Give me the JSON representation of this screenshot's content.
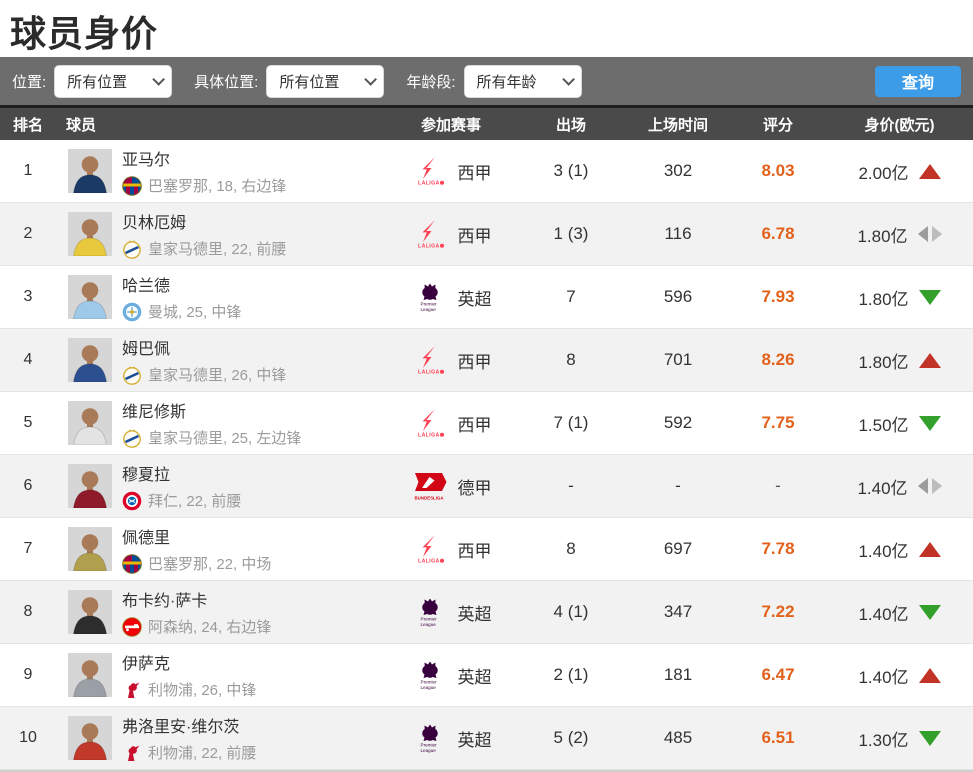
{
  "page": {
    "title": "球员身价"
  },
  "filters": {
    "items": [
      {
        "label": "位置:",
        "value": "所有位置"
      },
      {
        "label": "具体位置:",
        "value": "所有位置"
      },
      {
        "label": "年龄段:",
        "value": "所有年龄"
      }
    ],
    "search_label": "查询"
  },
  "table": {
    "headers": [
      "排名",
      "球员",
      "参加赛事",
      "出场",
      "上场时间",
      "评分",
      "身价(欧元)"
    ],
    "rows": [
      {
        "rank": "1",
        "name": "亚马尔",
        "club_info": "巴塞罗那, 18, 右边锋",
        "club": "barcelona",
        "league": "西甲",
        "league_key": "laliga",
        "apps": "3 (1)",
        "minutes": "302",
        "rating": "8.03",
        "value": "2.00亿",
        "trend": "up",
        "avatar_hint": "#1c3a66"
      },
      {
        "rank": "2",
        "name": "贝林厄姆",
        "club_info": "皇家马德里, 22, 前腰",
        "club": "realmadrid",
        "league": "西甲",
        "league_key": "laliga",
        "apps": "1 (3)",
        "minutes": "116",
        "rating": "6.78",
        "value": "1.80亿",
        "trend": "flat",
        "avatar_hint": "#e8c93d"
      },
      {
        "rank": "3",
        "name": "哈兰德",
        "club_info": "曼城, 25, 中锋",
        "club": "mancity",
        "league": "英超",
        "league_key": "premier",
        "apps": "7",
        "minutes": "596",
        "rating": "7.93",
        "value": "1.80亿",
        "trend": "down",
        "avatar_hint": "#9ec9e8"
      },
      {
        "rank": "4",
        "name": "姆巴佩",
        "club_info": "皇家马德里, 26, 中锋",
        "club": "realmadrid",
        "league": "西甲",
        "league_key": "laliga",
        "apps": "8",
        "minutes": "701",
        "rating": "8.26",
        "value": "1.80亿",
        "trend": "up",
        "avatar_hint": "#2b4f8f"
      },
      {
        "rank": "5",
        "name": "维尼修斯",
        "club_info": "皇家马德里, 25, 左边锋",
        "club": "realmadrid",
        "league": "西甲",
        "league_key": "laliga",
        "apps": "7 (1)",
        "minutes": "592",
        "rating": "7.75",
        "value": "1.50亿",
        "trend": "down",
        "avatar_hint": "#e3e3e3"
      },
      {
        "rank": "6",
        "name": "穆夏拉",
        "club_info": "拜仁, 22, 前腰",
        "club": "bayern",
        "league": "德甲",
        "league_key": "bundesliga",
        "apps": "-",
        "minutes": "-",
        "rating": "-",
        "value": "1.40亿",
        "trend": "flat",
        "avatar_hint": "#8f1b2a"
      },
      {
        "rank": "7",
        "name": "佩德里",
        "club_info": "巴塞罗那, 22, 中场",
        "club": "barcelona",
        "league": "西甲",
        "league_key": "laliga",
        "apps": "8",
        "minutes": "697",
        "rating": "7.78",
        "value": "1.40亿",
        "trend": "up",
        "avatar_hint": "#b0a04e"
      },
      {
        "rank": "8",
        "name": "布卡约·萨卡",
        "club_info": "阿森纳, 24, 右边锋",
        "club": "arsenal",
        "league": "英超",
        "league_key": "premier",
        "apps": "4 (1)",
        "minutes": "347",
        "rating": "7.22",
        "value": "1.40亿",
        "trend": "down",
        "avatar_hint": "#2d2d2d"
      },
      {
        "rank": "9",
        "name": "伊萨克",
        "club_info": "利物浦, 26, 中锋",
        "club": "liverpool",
        "league": "英超",
        "league_key": "premier",
        "apps": "2 (1)",
        "minutes": "181",
        "rating": "6.47",
        "value": "1.40亿",
        "trend": "up",
        "avatar_hint": "#9aa0a6"
      },
      {
        "rank": "10",
        "name": "弗洛里安·维尔茨",
        "club_info": "利物浦, 22, 前腰",
        "club": "liverpool",
        "league": "英超",
        "league_key": "premier",
        "apps": "5 (2)",
        "minutes": "485",
        "rating": "6.51",
        "value": "1.30亿",
        "trend": "down",
        "avatar_hint": "#c0392b"
      }
    ]
  },
  "colors": {
    "accent_blue": "#3d9ce8",
    "bar_gray": "#6d6d6d",
    "header_gray": "#4a4a4a",
    "rating_orange": "#e2611b",
    "trend_up_red": "#c13326",
    "trend_down_green": "#33a02c",
    "laliga_red": "#ff4053",
    "premier_purple": "#38003c",
    "bundesliga_red": "#d20515"
  }
}
